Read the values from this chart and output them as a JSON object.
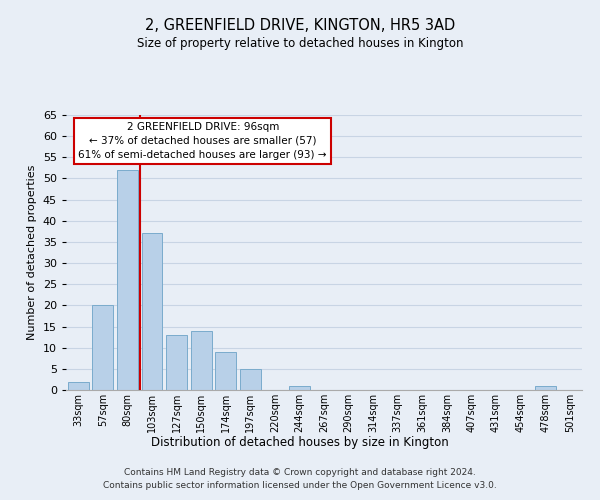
{
  "title": "2, GREENFIELD DRIVE, KINGTON, HR5 3AD",
  "subtitle": "Size of property relative to detached houses in Kington",
  "xlabel": "Distribution of detached houses by size in Kington",
  "ylabel": "Number of detached properties",
  "categories": [
    "33sqm",
    "57sqm",
    "80sqm",
    "103sqm",
    "127sqm",
    "150sqm",
    "174sqm",
    "197sqm",
    "220sqm",
    "244sqm",
    "267sqm",
    "290sqm",
    "314sqm",
    "337sqm",
    "361sqm",
    "384sqm",
    "407sqm",
    "431sqm",
    "454sqm",
    "478sqm",
    "501sqm"
  ],
  "values": [
    2,
    20,
    52,
    37,
    13,
    14,
    9,
    5,
    0,
    1,
    0,
    0,
    0,
    0,
    0,
    0,
    0,
    0,
    0,
    1,
    0
  ],
  "bar_color": "#b8d0e8",
  "bar_edge_color": "#7aabcc",
  "reference_line_color": "#cc0000",
  "ylim": [
    0,
    65
  ],
  "yticks": [
    0,
    5,
    10,
    15,
    20,
    25,
    30,
    35,
    40,
    45,
    50,
    55,
    60,
    65
  ],
  "annotation_title": "2 GREENFIELD DRIVE: 96sqm",
  "annotation_line1": "← 37% of detached houses are smaller (57)",
  "annotation_line2": "61% of semi-detached houses are larger (93) →",
  "annotation_box_color": "#ffffff",
  "annotation_box_edge_color": "#cc0000",
  "grid_color": "#c8d4e4",
  "background_color": "#e8eef6",
  "footer_line1": "Contains HM Land Registry data © Crown copyright and database right 2024.",
  "footer_line2": "Contains public sector information licensed under the Open Government Licence v3.0."
}
